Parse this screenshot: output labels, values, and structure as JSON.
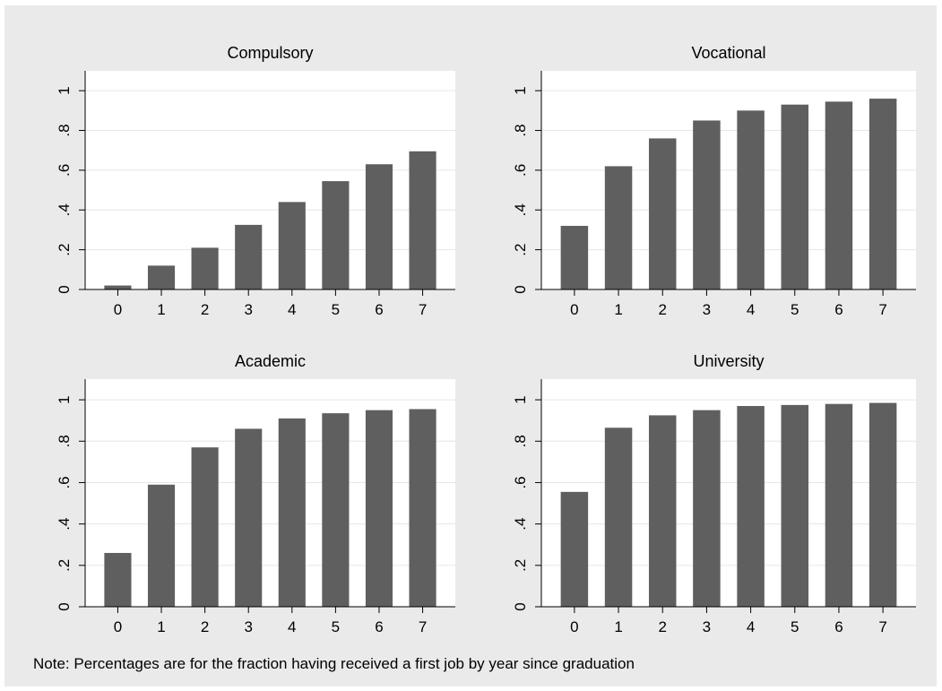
{
  "note": "Note: Percentages are for the fraction having received a first job by year since graduation",
  "colors": {
    "bar": "#5f5f5f",
    "plot_background": "#ffffff",
    "figure_background": "#eaeaea",
    "grid": "#e6e6e6"
  },
  "chart_data": [
    {
      "type": "bar",
      "title": "Compulsory",
      "categories": [
        "0",
        "1",
        "2",
        "3",
        "4",
        "5",
        "6",
        "7"
      ],
      "values": [
        0.02,
        0.12,
        0.21,
        0.325,
        0.44,
        0.545,
        0.63,
        0.695
      ],
      "ylim": [
        0,
        1.1
      ],
      "yticks": [
        0,
        0.2,
        0.4,
        0.6,
        0.8,
        1
      ],
      "ytick_labels": [
        "0",
        ".2",
        ".4",
        ".6",
        ".8",
        "1"
      ],
      "grid": true
    },
    {
      "type": "bar",
      "title": "Vocational",
      "categories": [
        "0",
        "1",
        "2",
        "3",
        "4",
        "5",
        "6",
        "7"
      ],
      "values": [
        0.32,
        0.62,
        0.76,
        0.85,
        0.9,
        0.93,
        0.945,
        0.96
      ],
      "ylim": [
        0,
        1.1
      ],
      "yticks": [
        0,
        0.2,
        0.4,
        0.6,
        0.8,
        1
      ],
      "ytick_labels": [
        "0",
        ".2",
        ".4",
        ".6",
        ".8",
        "1"
      ],
      "grid": true
    },
    {
      "type": "bar",
      "title": "Academic",
      "categories": [
        "0",
        "1",
        "2",
        "3",
        "4",
        "5",
        "6",
        "7"
      ],
      "values": [
        0.26,
        0.59,
        0.77,
        0.86,
        0.91,
        0.935,
        0.95,
        0.955
      ],
      "ylim": [
        0,
        1.1
      ],
      "yticks": [
        0,
        0.2,
        0.4,
        0.6,
        0.8,
        1
      ],
      "ytick_labels": [
        "0",
        ".2",
        ".4",
        ".6",
        ".8",
        "1"
      ],
      "grid": true
    },
    {
      "type": "bar",
      "title": "University",
      "categories": [
        "0",
        "1",
        "2",
        "3",
        "4",
        "5",
        "6",
        "7"
      ],
      "values": [
        0.555,
        0.865,
        0.925,
        0.95,
        0.97,
        0.975,
        0.98,
        0.985
      ],
      "ylim": [
        0,
        1.1
      ],
      "yticks": [
        0,
        0.2,
        0.4,
        0.6,
        0.8,
        1
      ],
      "ytick_labels": [
        "0",
        ".2",
        ".4",
        ".6",
        ".8",
        "1"
      ],
      "grid": true
    }
  ]
}
